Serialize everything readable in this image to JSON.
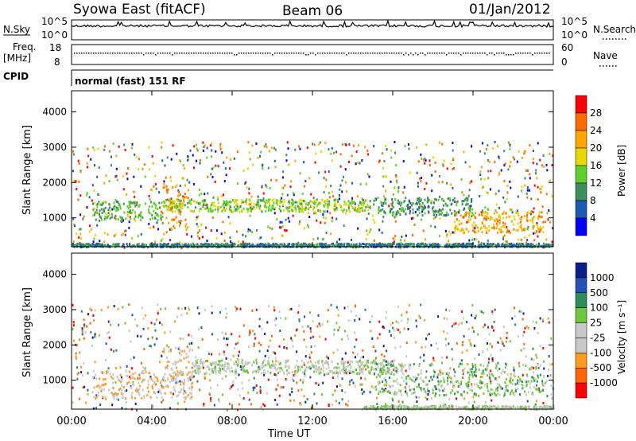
{
  "header": {
    "radar": "Syowa East (fitACF)",
    "beam": "Beam 06",
    "date": "01/Jan/2012"
  },
  "nsky_panel": {
    "left_label": "N.Sky",
    "right_label": "N.Search",
    "right_ticks": [
      "10^5",
      "10^0"
    ],
    "left_ticks": [
      "10^5",
      "10^0"
    ]
  },
  "freq_panel": {
    "left_label_1": "Freq.",
    "left_label_2": "[MHz]",
    "left_ticks": [
      "18",
      "8"
    ],
    "right_label": "Nave",
    "right_ticks": [
      "60",
      "0"
    ]
  },
  "cpid_panel": {
    "left_label": "CPID",
    "mode": "normal (fast) 151 RF"
  },
  "power_panel": {
    "ylabel": "Slant Range [km]",
    "colorbar_label": "Power [dB]",
    "colorbar_ticks": [
      "28",
      "24",
      "20",
      "16",
      "12",
      "8",
      "4"
    ],
    "colorbar_colors": [
      "#ff0000",
      "#ff6a00",
      "#ffa500",
      "#e8d800",
      "#5fcf2a",
      "#3e8e5c",
      "#1a5ab4",
      "#0000ff"
    ]
  },
  "velocity_panel": {
    "ylabel": "Slant Range [km]",
    "colorbar_label": "Velocity [m s⁻¹]",
    "colorbar_ticks": [
      "1000",
      "500",
      "100",
      "25",
      "-25",
      "-100",
      "-500",
      "-1000"
    ],
    "colorbar_colors": [
      "#0a1e8c",
      "#2450b8",
      "#2e8c5a",
      "#6cc83a",
      "#c8c8c8",
      "#c8c8c8",
      "#ff9b1e",
      "#ff6600",
      "#ff0000"
    ]
  },
  "xaxis": {
    "label": "Time UT",
    "ticks": [
      "00:00",
      "04:00",
      "08:00",
      "12:00",
      "16:00",
      "20:00",
      "00:00"
    ]
  },
  "chart_data": [
    {
      "type": "heatmap",
      "title": "Power",
      "xlabel": "Time UT",
      "ylabel": "Slant Range [km]",
      "xlim": [
        "00:00",
        "24:00"
      ],
      "ylim": [
        180,
        4600
      ],
      "yticks": [
        1000,
        2000,
        3000,
        4000
      ],
      "colorbar": {
        "label": "Power [dB]",
        "ticks": [
          4,
          8,
          12,
          16,
          20,
          24,
          28
        ],
        "range": [
          0,
          30
        ]
      },
      "bands": [
        {
          "t_start": 1.0,
          "t_end": 4.5,
          "range_lo": 950,
          "range_hi": 1500,
          "value": 12
        },
        {
          "t_start": 4.5,
          "t_end": 15.0,
          "range_lo": 1200,
          "range_hi": 1550,
          "value": 14
        },
        {
          "t_start": 15.0,
          "t_end": 20.0,
          "range_lo": 1100,
          "range_hi": 1600,
          "value": 10
        },
        {
          "t_start": 19.0,
          "t_end": 23.5,
          "range_lo": 600,
          "range_hi": 1200,
          "value": 20
        },
        {
          "t_start": 0.0,
          "t_end": 24.0,
          "range_lo": 200,
          "range_hi": 300,
          "value": 8
        },
        {
          "t_start": 4.5,
          "t_end": 5.8,
          "range_lo": 700,
          "range_hi": 2000,
          "value": 22
        }
      ]
    },
    {
      "type": "heatmap",
      "title": "Velocity",
      "xlabel": "Time UT",
      "ylabel": "Slant Range [km]",
      "xlim": [
        "00:00",
        "24:00"
      ],
      "ylim": [
        180,
        4600
      ],
      "yticks": [
        1000,
        2000,
        3000,
        4000
      ],
      "colorbar": {
        "label": "Velocity [m s⁻¹]",
        "ticks": [
          -1000,
          -500,
          -100,
          -25,
          25,
          100,
          500,
          1000
        ],
        "range": [
          -1000,
          1000
        ]
      },
      "bands": [
        {
          "t_start": 1.0,
          "t_end": 6.0,
          "range_lo": 500,
          "range_hi": 1300,
          "value": -300
        },
        {
          "t_start": 4.5,
          "t_end": 6.0,
          "range_lo": 900,
          "range_hi": 2000,
          "value": -300
        },
        {
          "t_start": 6.0,
          "t_end": 16.5,
          "range_lo": 1200,
          "range_hi": 1600,
          "value": 0
        },
        {
          "t_start": 15.0,
          "t_end": 24.0,
          "range_lo": 600,
          "range_hi": 1500,
          "value": 200
        },
        {
          "t_start": 14.5,
          "t_end": 24.0,
          "range_lo": 200,
          "range_hi": 300,
          "value": 50
        }
      ]
    }
  ]
}
